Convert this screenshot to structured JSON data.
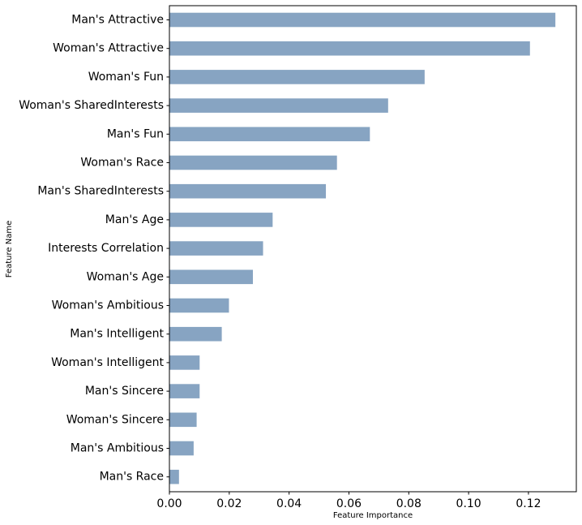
{
  "chart_data": {
    "type": "bar",
    "orientation": "horizontal",
    "xlabel": "Feature Importance",
    "ylabel": "Feature Name",
    "xlim": [
      0,
      0.136
    ],
    "xticks": [
      0.0,
      0.02,
      0.04,
      0.06,
      0.08,
      0.1,
      0.12
    ],
    "xtick_labels": [
      "0.00",
      "0.02",
      "0.04",
      "0.06",
      "0.08",
      "0.10",
      "0.12"
    ],
    "bar_color": "#87a4c2",
    "grid": false,
    "categories": [
      "Man's Attractive",
      "Woman's Attractive",
      "Woman's Fun",
      "Woman's SharedInterests",
      "Man's Fun",
      "Woman's Race",
      "Man's SharedInterests",
      "Man's Age",
      "Interests Correlation",
      "Woman's Age",
      "Woman's Ambitious",
      "Man's Intelligent",
      "Woman's Intelligent",
      "Man's Sincere",
      "Woman's Sincere",
      "Man's Ambitious",
      "Man's Race"
    ],
    "values": [
      0.129,
      0.1205,
      0.0853,
      0.0731,
      0.067,
      0.056,
      0.0523,
      0.0345,
      0.0313,
      0.0279,
      0.0199,
      0.0175,
      0.0101,
      0.0101,
      0.0091,
      0.0081,
      0.0032
    ]
  }
}
